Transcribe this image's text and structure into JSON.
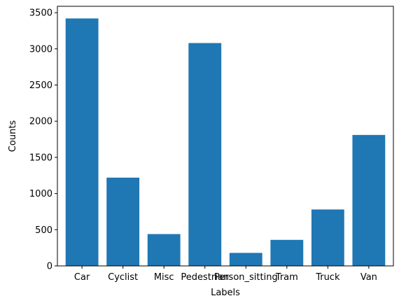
{
  "chart_data": {
    "type": "bar",
    "title": "",
    "xlabel": "Labels",
    "ylabel": "Counts",
    "categories": [
      "Car",
      "Cyclist",
      "Misc",
      "Pedestrian",
      "Person_sitting",
      "Tram",
      "Truck",
      "Van"
    ],
    "values": [
      3420,
      1220,
      440,
      3080,
      180,
      360,
      780,
      1810
    ],
    "ylim": [
      0,
      3588
    ],
    "yticks": [
      0,
      500,
      1000,
      1500,
      2000,
      2500,
      3000,
      3500
    ],
    "grid": false,
    "bar_color": "#1f77b4"
  }
}
